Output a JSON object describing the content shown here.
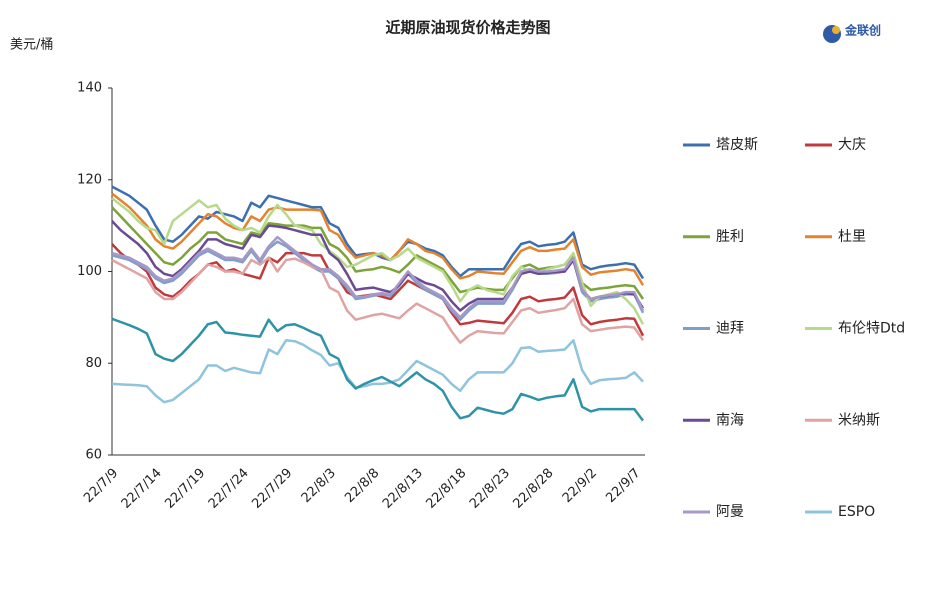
{
  "logo": "金联创",
  "chart_data": {
    "type": "line",
    "title": "近期原油现货价格走势图",
    "y_label": "美元/桶",
    "ylim": [
      60,
      140
    ],
    "yticks": [
      60,
      80,
      100,
      120,
      140
    ],
    "grid": false,
    "legend": "right",
    "categories": [
      "22/7/9",
      null,
      null,
      null,
      null,
      "22/7/14",
      null,
      null,
      null,
      null,
      "22/7/19",
      null,
      null,
      null,
      null,
      "22/7/24",
      null,
      null,
      null,
      null,
      "22/7/29",
      null,
      null,
      null,
      null,
      "22/8/3",
      null,
      null,
      null,
      null,
      "22/8/8",
      null,
      null,
      null,
      null,
      "22/8/13",
      null,
      null,
      null,
      null,
      "22/8/18",
      null,
      null,
      null,
      null,
      "22/8/23",
      null,
      null,
      null,
      null,
      "22/8/28",
      null,
      null,
      null,
      null,
      "22/9/2",
      null,
      null,
      null,
      null,
      "22/9/7",
      null
    ],
    "series": [
      {
        "name": "塔皮斯",
        "color": "#3b6fb0",
        "values": [
          118.5,
          117.5,
          116.5,
          115,
          113.5,
          110,
          107,
          106.5,
          108,
          110,
          112,
          111.5,
          113,
          112.5,
          112,
          111,
          115,
          114,
          116.5,
          116,
          115.5,
          115,
          114.5,
          114,
          114,
          110.5,
          109.5,
          106,
          103.5,
          103.8,
          104,
          103,
          102.5,
          104.5,
          106.5,
          106,
          105,
          104.5,
          103.5,
          101,
          99,
          100.5,
          100.5,
          100.5,
          100.5,
          100.5,
          103.5,
          106,
          106.5,
          105.5,
          105.8,
          106,
          106.5,
          108.5,
          101.5,
          100.5,
          101,
          101.3,
          101.5,
          101.8,
          101.5,
          98.5
        ]
      },
      {
        "name": "大庆",
        "color": "#c0393b",
        "values": [
          106,
          104,
          102.5,
          101.5,
          100,
          96.5,
          95,
          94.5,
          96,
          98,
          99.5,
          101.5,
          102,
          100,
          100.5,
          99.5,
          99,
          98.5,
          103,
          102,
          104,
          104,
          104,
          103.5,
          103.5,
          100,
          98.5,
          95.5,
          94.5,
          94.7,
          95,
          94.5,
          94,
          96,
          98,
          97,
          96,
          95,
          94,
          91,
          88.5,
          88.8,
          89.3,
          89.1,
          88.9,
          88.7,
          91,
          94,
          94.5,
          93.5,
          93.8,
          94,
          94.3,
          96.5,
          90.5,
          88.5,
          89,
          89.3,
          89.5,
          89.8,
          89.7,
          86
        ]
      },
      {
        "name": "胜利",
        "color": "#7ea33a",
        "values": [
          114,
          112,
          110,
          108,
          106,
          104,
          102,
          101.5,
          103,
          105,
          106.5,
          108.5,
          108.5,
          107,
          106.5,
          106,
          108.5,
          108,
          110.5,
          110.3,
          110,
          110,
          110,
          109.5,
          109.5,
          106,
          105,
          103,
          100,
          100.3,
          100.5,
          101,
          100.5,
          99.8,
          101.5,
          103.5,
          102.5,
          101.5,
          100.5,
          98,
          95.5,
          96,
          96.5,
          96.2,
          96,
          96,
          98.5,
          101,
          101.5,
          100.5,
          100.8,
          101,
          101.5,
          103.5,
          97.5,
          96,
          96.3,
          96.5,
          96.8,
          97,
          96.8,
          94
        ]
      },
      {
        "name": "杜里",
        "color": "#e4832f",
        "values": [
          117,
          115.5,
          114,
          112,
          110,
          107,
          105.5,
          105,
          106.5,
          108.5,
          110.5,
          112.5,
          112,
          110.5,
          109.5,
          109,
          112,
          111,
          113.5,
          114,
          113.5,
          113.5,
          113.5,
          113.5,
          113.3,
          109,
          108,
          105,
          103,
          103.5,
          104,
          103.5,
          102.5,
          104.5,
          107,
          106,
          104.5,
          104,
          103,
          100.5,
          98.5,
          99,
          100,
          99.8,
          99.6,
          99.5,
          102,
          104.5,
          105.3,
          104.5,
          104.5,
          104.8,
          105,
          107,
          101,
          99.3,
          99.8,
          100,
          100.2,
          100.5,
          100.2,
          97
        ]
      },
      {
        "name": "迪拜",
        "color": "#7f9fcb",
        "values": [
          103.5,
          103,
          102.5,
          101.5,
          100.5,
          98.5,
          97.5,
          98,
          99.5,
          101.5,
          103.5,
          104.5,
          103.5,
          102.5,
          102.5,
          102,
          104.5,
          102,
          105,
          106.5,
          105.5,
          104,
          102.5,
          101,
          100,
          100,
          98.5,
          96.5,
          94,
          94.3,
          94.7,
          95,
          94.7,
          97,
          99.5,
          97.5,
          96,
          95,
          94,
          91.5,
          89.5,
          91.5,
          93,
          93,
          93,
          93,
          96,
          99.5,
          100,
          99.5,
          99.5,
          99.7,
          100,
          102.5,
          95.5,
          93.5,
          94,
          94.3,
          94.5,
          95,
          95,
          91
        ]
      },
      {
        "name": "布伦特Dtd",
        "color": "#b7d98a",
        "values": [
          116,
          114.5,
          113,
          111,
          109.5,
          109,
          106,
          111,
          112.5,
          114,
          115.5,
          114,
          114.5,
          111.5,
          110,
          109,
          109.5,
          108.5,
          112,
          114.5,
          112.5,
          110,
          109.5,
          109,
          106,
          104.5,
          103,
          101,
          101.5,
          102.5,
          103.5,
          104,
          102.5,
          103.5,
          105,
          103,
          102,
          101,
          100,
          97,
          93.5,
          96,
          97,
          96,
          95.5,
          95,
          99,
          101,
          100,
          99.5,
          100.5,
          101,
          101.5,
          104,
          97.5,
          92.5,
          94.5,
          95,
          95.5,
          94,
          92,
          88.5
        ]
      },
      {
        "name": "南海",
        "color": "#6b4a94",
        "values": [
          111,
          109,
          107.5,
          106,
          104,
          101,
          99.5,
          99,
          100.5,
          102.5,
          104.5,
          107,
          107,
          106,
          105.5,
          105,
          108,
          107.5,
          110,
          109.8,
          109.5,
          109,
          108.5,
          108,
          108,
          104,
          102.5,
          99.5,
          96,
          96.3,
          96.5,
          96,
          95.5,
          97,
          99.5,
          98.5,
          97.5,
          97,
          96,
          93.5,
          91.5,
          93,
          94,
          94,
          94,
          94,
          96.5,
          99.5,
          100,
          99.5,
          99.7,
          99.9,
          100,
          102.5,
          96,
          94,
          94.5,
          94.7,
          95,
          95.3,
          95,
          92
        ]
      },
      {
        "name": "米纳斯",
        "color": "#e0a3a3",
        "values": [
          102.5,
          101.5,
          100.5,
          99.5,
          98.5,
          95.5,
          94,
          94,
          95.5,
          97.5,
          99.5,
          101.5,
          101,
          100,
          100,
          99.5,
          102.5,
          101.5,
          103,
          100,
          102.5,
          102.8,
          102,
          101,
          100.5,
          96.5,
          95.5,
          91.5,
          89.5,
          90,
          90.5,
          90.8,
          90.3,
          89.8,
          91.5,
          93,
          92,
          91,
          90,
          87,
          84.5,
          86,
          87,
          86.8,
          86.6,
          86.5,
          89,
          91.5,
          92,
          91,
          91.3,
          91.6,
          92,
          94,
          88.5,
          87,
          87.3,
          87.6,
          87.8,
          88,
          87.8,
          85
        ]
      },
      {
        "name": "阿曼",
        "color": "#a898c8",
        "values": [
          104,
          103.5,
          103,
          102,
          101,
          99,
          98,
          98.5,
          100,
          102,
          104,
          105,
          104,
          103,
          103,
          102.5,
          105,
          102.5,
          105.5,
          107.5,
          106,
          104.5,
          103,
          101.5,
          100.5,
          100.5,
          99,
          97,
          94.5,
          94.5,
          95,
          95.3,
          95,
          97.5,
          100,
          98,
          96.5,
          95.5,
          94.5,
          92,
          90,
          92,
          93.5,
          93.5,
          93.5,
          93.5,
          96.5,
          100,
          100.5,
          100,
          100,
          100.2,
          100.5,
          103,
          96,
          94,
          94.5,
          94.8,
          95,
          95.5,
          95.5,
          91.5
        ]
      },
      {
        "name": "ESPO",
        "color": "#8fc4dc",
        "values": [
          75.5,
          75.4,
          75.3,
          75.2,
          75,
          73,
          71.5,
          72,
          73.5,
          75,
          76.5,
          79.5,
          79.5,
          78.3,
          79,
          78.5,
          78,
          77.8,
          83,
          82,
          85,
          84.8,
          84,
          82.8,
          81.8,
          79.5,
          80,
          77,
          74.7,
          75,
          75.5,
          75.5,
          75.8,
          76.5,
          78.5,
          80.5,
          79.5,
          78.5,
          77.5,
          75.5,
          74,
          76.5,
          78,
          78,
          78,
          78,
          80,
          83.3,
          83.5,
          82.5,
          82.7,
          82.8,
          83,
          85,
          78.5,
          75.5,
          76.3,
          76.5,
          76.6,
          76.8,
          78,
          76
        ]
      },
      {
        "color": "#2f93a8",
        "values": [
          89.7,
          89,
          88.3,
          87.5,
          86.5,
          82,
          81,
          80.5,
          82,
          84,
          86,
          88.5,
          89,
          86.7,
          86.5,
          86.2,
          86,
          85.8,
          89.5,
          87,
          88.3,
          88.5,
          87.7,
          86.8,
          86,
          82,
          81,
          76.5,
          74.5,
          75.5,
          76.3,
          77,
          76,
          75,
          76.5,
          78,
          76.5,
          75.5,
          74,
          70.5,
          68,
          68.5,
          70.3,
          69.8,
          69.3,
          69,
          70,
          73.3,
          72.7,
          72,
          72.5,
          72.8,
          73,
          76.5,
          70.5,
          69.5,
          70,
          70,
          70,
          70,
          70,
          67.5
        ]
      }
    ]
  }
}
